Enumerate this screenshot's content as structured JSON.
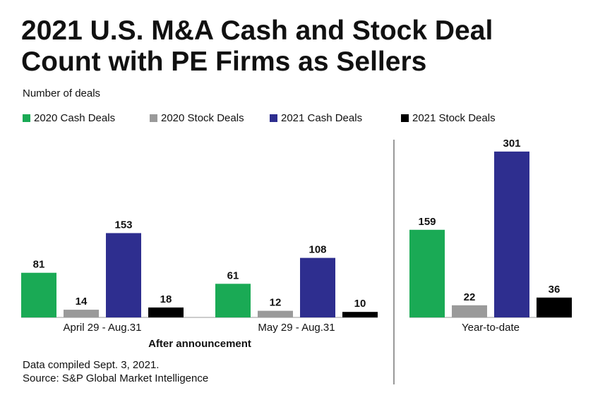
{
  "chart_data": {
    "type": "bar",
    "title": "2021 U.S. M&A Cash and Stock Deal Count with PE Firms as Sellers",
    "y_label": "Number of deals",
    "categories": [
      "April 29 - Aug.31",
      "May 29 - Aug.31",
      "Year-to-date"
    ],
    "group_label": "After announcement",
    "series": [
      {
        "name": "2020 Cash Deals",
        "color": "#1aaa55",
        "values": [
          81,
          61,
          159
        ]
      },
      {
        "name": "2020 Stock Deals",
        "color": "#9a9a9a",
        "values": [
          14,
          12,
          22
        ]
      },
      {
        "name": "2021 Cash Deals",
        "color": "#2e2e8f",
        "values": [
          153,
          108,
          301
        ]
      },
      {
        "name": "2021 Stock Deals",
        "color": "#000000",
        "values": [
          18,
          10,
          36
        ]
      }
    ],
    "ylim": [
      0,
      320
    ],
    "notes": [
      "Data compiled Sept. 3, 2021.",
      "Source: S&P Global Market Intelligence"
    ]
  }
}
